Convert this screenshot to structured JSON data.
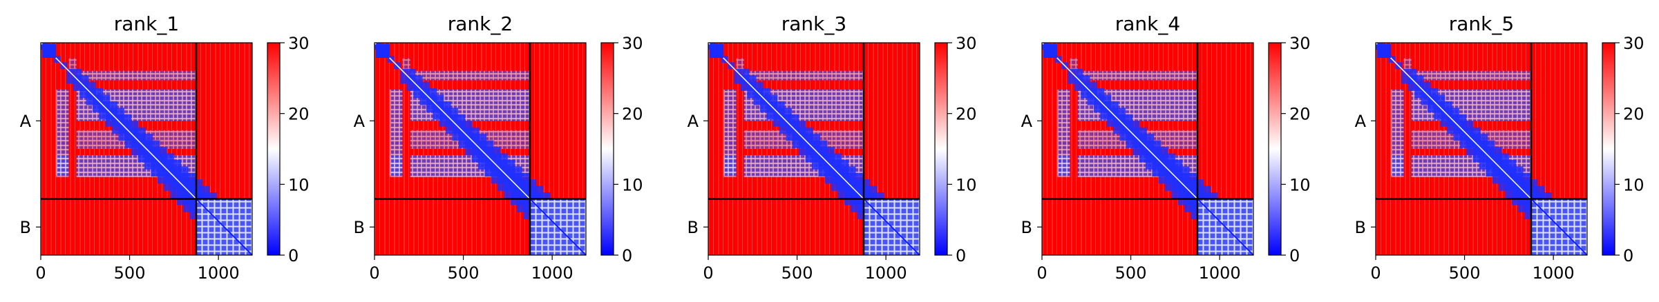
{
  "chart_data": [
    {
      "type": "heatmap",
      "title": "rank_1",
      "x_ticks": [
        0,
        500,
        1000
      ],
      "x_range": [
        0,
        1190
      ],
      "y_ticks": [
        "A",
        "B"
      ],
      "chain_boundary": 875,
      "colorbar": {
        "min": 0,
        "max": 30,
        "ticks": [
          0,
          10,
          20,
          30
        ],
        "colors": [
          "#0000ff",
          "#ffffff",
          "#ff0000"
        ]
      }
    },
    {
      "type": "heatmap",
      "title": "rank_2",
      "x_ticks": [
        0,
        500,
        1000
      ],
      "x_range": [
        0,
        1190
      ],
      "y_ticks": [
        "A",
        "B"
      ],
      "chain_boundary": 875,
      "colorbar": {
        "min": 0,
        "max": 30,
        "ticks": [
          0,
          10,
          20,
          30
        ],
        "colors": [
          "#0000ff",
          "#ffffff",
          "#ff0000"
        ]
      }
    },
    {
      "type": "heatmap",
      "title": "rank_3",
      "x_ticks": [
        0,
        500,
        1000
      ],
      "x_range": [
        0,
        1190
      ],
      "y_ticks": [
        "A",
        "B"
      ],
      "chain_boundary": 875,
      "colorbar": {
        "min": 0,
        "max": 30,
        "ticks": [
          0,
          10,
          20,
          30
        ],
        "colors": [
          "#0000ff",
          "#ffffff",
          "#ff0000"
        ]
      }
    },
    {
      "type": "heatmap",
      "title": "rank_4",
      "x_ticks": [
        0,
        500,
        1000
      ],
      "x_range": [
        0,
        1190
      ],
      "y_ticks": [
        "A",
        "B"
      ],
      "chain_boundary": 875,
      "colorbar": {
        "min": 0,
        "max": 30,
        "ticks": [
          0,
          10,
          20,
          30
        ],
        "colors": [
          "#0000ff",
          "#ffffff",
          "#ff0000"
        ]
      }
    },
    {
      "type": "heatmap",
      "title": "rank_5",
      "x_ticks": [
        0,
        500,
        1000
      ],
      "x_range": [
        0,
        1190
      ],
      "y_ticks": [
        "A",
        "B"
      ],
      "chain_boundary": 875,
      "colorbar": {
        "min": 0,
        "max": 30,
        "ticks": [
          0,
          10,
          20,
          30
        ],
        "colors": [
          "#0000ff",
          "#ffffff",
          "#ff0000"
        ]
      }
    }
  ]
}
